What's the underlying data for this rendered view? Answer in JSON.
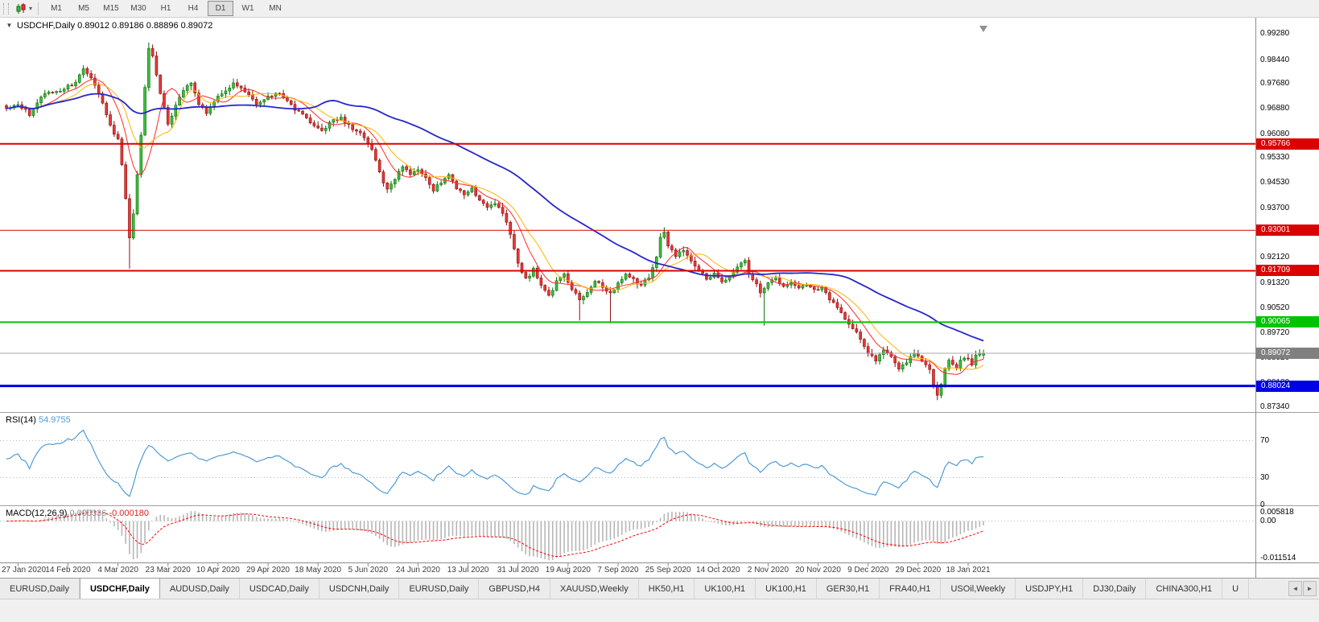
{
  "toolbar": {
    "timeframes": [
      "M1",
      "M5",
      "M15",
      "M30",
      "H1",
      "H4",
      "D1",
      "W1",
      "MN"
    ],
    "active_timeframe": "D1",
    "dropdown_caret": "▾"
  },
  "chart": {
    "collapse_icon": "▼",
    "info_line": "USDCHF,Daily 0.89012 0.89186 0.88896 0.89072",
    "symbol": "USDCHF",
    "period": "Daily"
  },
  "chart_data": {
    "type": "candlestick",
    "title": "USDCHF,Daily",
    "y_axis": {
      "labels": [
        "0.99280",
        "0.98440",
        "0.97680",
        "0.96880",
        "0.96080",
        "0.95330",
        "0.94530",
        "0.93700",
        "0.92900",
        "0.92120",
        "0.91320",
        "0.90520",
        "0.89720",
        "0.88920",
        "0.88120",
        "0.87340"
      ]
    },
    "x_axis": {
      "ticks": [
        {
          "label": "27 Jan 2020",
          "i": 3
        },
        {
          "label": "14 Feb 2020",
          "i": 16
        },
        {
          "label": "4 Mar 2020",
          "i": 29
        },
        {
          "label": "23 Mar 2020",
          "i": 42
        },
        {
          "label": "10 Apr 2020",
          "i": 55
        },
        {
          "label": "29 Apr 2020",
          "i": 68
        },
        {
          "label": "18 May 2020",
          "i": 81
        },
        {
          "label": "5 Jun 2020",
          "i": 94
        },
        {
          "label": "24 Jun 2020",
          "i": 107
        },
        {
          "label": "13 Jul 2020",
          "i": 120
        },
        {
          "label": "31 Jul 2020",
          "i": 133
        },
        {
          "label": "19 Aug 2020",
          "i": 146
        },
        {
          "label": "7 Sep 2020",
          "i": 159
        },
        {
          "label": "25 Sep 2020",
          "i": 172
        },
        {
          "label": "14 Oct 2020",
          "i": 185
        },
        {
          "label": "2 Nov 2020",
          "i": 198
        },
        {
          "label": "20 Nov 2020",
          "i": 211
        },
        {
          "label": "9 Dec 2020",
          "i": 224
        },
        {
          "label": "29 Dec 2020",
          "i": 237
        },
        {
          "label": "18 Jan 2021",
          "i": 250
        }
      ]
    },
    "levels": [
      {
        "price": 0.95766,
        "label": "0.95766",
        "color": "#dd0000",
        "width": 2
      },
      {
        "price": 0.93001,
        "label": "0.93001",
        "color": "#dd0000",
        "width": 1
      },
      {
        "price": 0.91709,
        "label": "0.91709",
        "color": "#dd0000",
        "width": 2
      },
      {
        "price": 0.90065,
        "label": "0.90065",
        "color": "#00c400",
        "width": 2
      },
      {
        "price": 0.88024,
        "label": "0.88024",
        "color": "#0000e6",
        "width": 3
      }
    ],
    "current_price": {
      "value": 0.89072,
      "label": "0.89072",
      "color": "#808080"
    },
    "up": {
      "fill": "#3dbd3d",
      "stroke": "#0a6e0a"
    },
    "down": {
      "fill": "#e53935",
      "stroke": "#8f0d0d"
    },
    "candles_count": 255,
    "last_candle": {
      "open": 0.89012,
      "high": 0.89186,
      "low": 0.88896,
      "close": 0.89072
    },
    "anchors": [
      [
        0,
        0.969
      ],
      [
        3,
        0.9702
      ],
      [
        6,
        0.9672
      ],
      [
        10,
        0.9738
      ],
      [
        14,
        0.9748
      ],
      [
        18,
        0.9772
      ],
      [
        20,
        0.9812
      ],
      [
        22,
        0.9788
      ],
      [
        25,
        0.9706
      ],
      [
        27,
        0.9632
      ],
      [
        29,
        0.959
      ],
      [
        30,
        0.9506
      ],
      [
        31,
        0.9396
      ],
      [
        32,
        0.9272
      ],
      [
        33,
        0.9352
      ],
      [
        34,
        0.9478
      ],
      [
        35,
        0.9608
      ],
      [
        36,
        0.9758
      ],
      [
        37,
        0.988
      ],
      [
        38,
        0.9856
      ],
      [
        39,
        0.9798
      ],
      [
        40,
        0.9736
      ],
      [
        42,
        0.964
      ],
      [
        44,
        0.9698
      ],
      [
        46,
        0.9752
      ],
      [
        48,
        0.9768
      ],
      [
        50,
        0.9706
      ],
      [
        52,
        0.9674
      ],
      [
        54,
        0.9712
      ],
      [
        56,
        0.9738
      ],
      [
        59,
        0.977
      ],
      [
        62,
        0.9744
      ],
      [
        65,
        0.9702
      ],
      [
        68,
        0.9724
      ],
      [
        71,
        0.9738
      ],
      [
        74,
        0.97
      ],
      [
        78,
        0.9656
      ],
      [
        82,
        0.9616
      ],
      [
        84,
        0.9648
      ],
      [
        87,
        0.9658
      ],
      [
        90,
        0.9622
      ],
      [
        93,
        0.96
      ],
      [
        95,
        0.9562
      ],
      [
        97,
        0.9482
      ],
      [
        99,
        0.9428
      ],
      [
        101,
        0.9464
      ],
      [
        103,
        0.9508
      ],
      [
        105,
        0.9482
      ],
      [
        107,
        0.9498
      ],
      [
        109,
        0.9466
      ],
      [
        111,
        0.9428
      ],
      [
        113,
        0.9454
      ],
      [
        115,
        0.9474
      ],
      [
        117,
        0.9432
      ],
      [
        119,
        0.9412
      ],
      [
        121,
        0.9436
      ],
      [
        123,
        0.9396
      ],
      [
        125,
        0.9372
      ],
      [
        127,
        0.939
      ],
      [
        129,
        0.9356
      ],
      [
        131,
        0.9292
      ],
      [
        133,
        0.9192
      ],
      [
        135,
        0.9142
      ],
      [
        137,
        0.9176
      ],
      [
        139,
        0.9122
      ],
      [
        141,
        0.9088
      ],
      [
        143,
        0.9134
      ],
      [
        145,
        0.9158
      ],
      [
        147,
        0.9112
      ],
      [
        149,
        0.908
      ],
      [
        151,
        0.9106
      ],
      [
        153,
        0.914
      ],
      [
        155,
        0.9122
      ],
      [
        157,
        0.9096
      ],
      [
        159,
        0.9132
      ],
      [
        161,
        0.9164
      ],
      [
        163,
        0.9142
      ],
      [
        165,
        0.9122
      ],
      [
        167,
        0.9152
      ],
      [
        169,
        0.9212
      ],
      [
        170,
        0.9278
      ],
      [
        171,
        0.9294
      ],
      [
        172,
        0.9252
      ],
      [
        174,
        0.9216
      ],
      [
        176,
        0.9236
      ],
      [
        178,
        0.9206
      ],
      [
        180,
        0.9172
      ],
      [
        182,
        0.9146
      ],
      [
        184,
        0.9162
      ],
      [
        186,
        0.9132
      ],
      [
        188,
        0.9156
      ],
      [
        190,
        0.9182
      ],
      [
        192,
        0.9206
      ],
      [
        193,
        0.9162
      ],
      [
        195,
        0.9132
      ],
      [
        196,
        0.9098
      ],
      [
        198,
        0.9132
      ],
      [
        200,
        0.9146
      ],
      [
        202,
        0.9122
      ],
      [
        204,
        0.9136
      ],
      [
        206,
        0.9112
      ],
      [
        208,
        0.9126
      ],
      [
        210,
        0.9106
      ],
      [
        212,
        0.9112
      ],
      [
        214,
        0.9082
      ],
      [
        216,
        0.9052
      ],
      [
        218,
        0.9016
      ],
      [
        220,
        0.8986
      ],
      [
        222,
        0.8956
      ],
      [
        224,
        0.8906
      ],
      [
        226,
        0.8882
      ],
      [
        228,
        0.8922
      ],
      [
        230,
        0.8892
      ],
      [
        232,
        0.8856
      ],
      [
        234,
        0.8882
      ],
      [
        236,
        0.8912
      ],
      [
        238,
        0.8882
      ],
      [
        240,
        0.8852
      ],
      [
        241,
        0.8802
      ],
      [
        242,
        0.8776
      ],
      [
        243,
        0.8812
      ],
      [
        244,
        0.8862
      ],
      [
        245,
        0.889
      ],
      [
        246,
        0.8872
      ],
      [
        247,
        0.8856
      ],
      [
        248,
        0.8882
      ],
      [
        249,
        0.8896
      ],
      [
        250,
        0.8886
      ],
      [
        251,
        0.8872
      ],
      [
        252,
        0.8896
      ],
      [
        253,
        0.8904
      ],
      [
        254,
        0.89072
      ]
    ],
    "wick_overrides": [
      [
        32,
        "l",
        0.9178
      ],
      [
        37,
        "h",
        0.9901
      ],
      [
        149,
        "l",
        0.9012
      ],
      [
        157,
        "l",
        0.9003
      ],
      [
        171,
        "h",
        0.931
      ],
      [
        197,
        "l",
        0.8995
      ],
      [
        242,
        "l",
        0.8757
      ]
    ],
    "moving_averages": [
      {
        "period": 8,
        "color": "#ff2a2a",
        "width": 1
      },
      {
        "period": 13,
        "color": "#ffb400",
        "width": 1
      },
      {
        "period": 50,
        "color": "#2626cc",
        "width": 1.8
      }
    ],
    "rsi": {
      "name": "RSI(14)",
      "value_str": "54.9755",
      "period": 14,
      "value": 54.9755,
      "axis_labels": [
        "70",
        "30",
        "0"
      ],
      "line_color": "#4f9bd5"
    },
    "macd": {
      "name": "MACD(12,26,9)",
      "main_value_str": "0.000336",
      "signal_value_str": "-0.000180",
      "fast": 12,
      "slow": 26,
      "signal_period": 9,
      "main_value": 0.000336,
      "signal_value": -0.00018,
      "axis_top_label": "0.005818",
      "axis_zero_label": "0.00",
      "axis_bottom_label": "-0.011514",
      "hist_color": "#b6b6b6",
      "signal_color": "#ff0000"
    }
  },
  "tabbar": {
    "tabs": [
      "EURUSD,Daily",
      "USDCHF,Daily",
      "AUDUSD,Daily",
      "USDCAD,Daily",
      "USDCNH,Daily",
      "EURUSD,Daily",
      "GBPUSD,H4",
      "XAUUSD,Weekly",
      "HK50,H1",
      "UK100,H1",
      "UK100,H1",
      "GER30,H1",
      "FRA40,H1",
      "USOil,Weekly",
      "USDJPY,H1",
      "DJ30,Daily",
      "CHINA300,H1",
      "U"
    ],
    "active_index": 1,
    "scroll_left": "◄",
    "scroll_right": "►"
  }
}
